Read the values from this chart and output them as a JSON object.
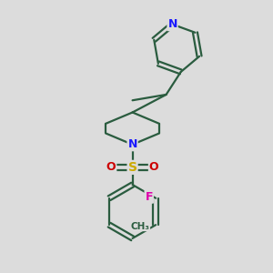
{
  "background_color": "#dcdcdc",
  "bond_color": "#2a5c3f",
  "bond_width": 1.6,
  "atom_colors": {
    "N_pyridine": "#1a1aff",
    "N_piperidine": "#1a1aff",
    "S": "#ccaa00",
    "O": "#cc0000",
    "F": "#dd00aa",
    "C": "#2a5c3f",
    "CH3": "#2a5c3f"
  },
  "figsize": [
    3.0,
    3.0
  ],
  "dpi": 100,
  "xlim": [
    0,
    10
  ],
  "ylim": [
    0,
    10
  ]
}
